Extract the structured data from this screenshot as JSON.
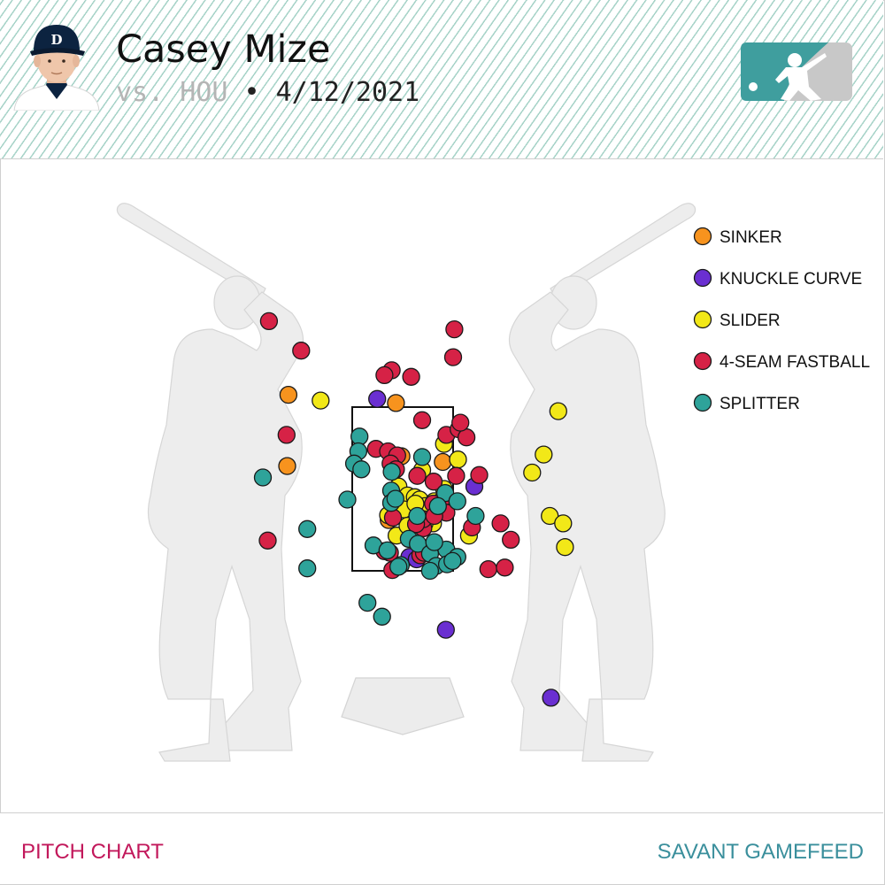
{
  "header": {
    "pitcher_name": "Casey Mize",
    "opponent": "vs. HOU",
    "separator": "•",
    "date": "4/12/2021"
  },
  "footer": {
    "left_label": "PITCH CHART",
    "right_label": "SAVANT GAMEFEED"
  },
  "icons": [
    "player-headshot-icon",
    "mlb-logo-icon",
    "batter-silhouette-icon",
    "home-plate-icon"
  ],
  "colors": {
    "SINKER": "#f7931e",
    "KNUCKLE CURVE": "#6a2fd1",
    "SLIDER": "#f2e818",
    "4-SEAM FASTBALL": "#d62246",
    "SPLITTER": "#2ea39a",
    "footer_left": "#c2185b",
    "footer_right": "#3a8f9c"
  },
  "chart_data": {
    "type": "scatter",
    "title": "",
    "xlabel": "",
    "ylabel": "",
    "legend_position": "right",
    "strike_zone": {
      "x": [
        -0.83,
        0.83
      ],
      "z": [
        1.5,
        3.5
      ]
    },
    "series": [
      {
        "name": "SINKER",
        "color": "#f7931e",
        "points": [
          [
            -1.88,
            3.65
          ],
          [
            -0.11,
            3.55
          ],
          [
            -1.9,
            2.78
          ],
          [
            -0.02,
            2.9
          ],
          [
            0.66,
            2.83
          ],
          [
            -0.23,
            2.12
          ]
        ]
      },
      {
        "name": "KNUCKLE CURVE",
        "color": "#6a2fd1",
        "points": [
          [
            -0.42,
            3.6
          ],
          [
            1.18,
            2.53
          ],
          [
            0.11,
            1.67
          ],
          [
            0.23,
            1.64
          ],
          [
            0.71,
            0.78
          ],
          [
            2.44,
            -0.05
          ]
        ]
      },
      {
        "name": "SLIDER",
        "color": "#f2e818",
        "points": [
          [
            -1.35,
            3.58
          ],
          [
            2.56,
            3.45
          ],
          [
            2.32,
            2.92
          ],
          [
            -0.07,
            2.53
          ],
          [
            0.08,
            2.42
          ],
          [
            0.2,
            2.4
          ],
          [
            0.28,
            2.37
          ],
          [
            0.37,
            2.29
          ],
          [
            0.02,
            2.25
          ],
          [
            0.43,
            2.25
          ],
          [
            0.49,
            2.14
          ],
          [
            -0.24,
            2.18
          ],
          [
            0.68,
            2.5
          ],
          [
            2.13,
            2.7
          ],
          [
            2.67,
            1.79
          ],
          [
            0.32,
            2.73
          ],
          [
            0.68,
            3.05
          ],
          [
            0.91,
            2.86
          ],
          [
            0.52,
            2.35
          ],
          [
            0.21,
            2.32
          ],
          [
            0.5,
            2.08
          ],
          [
            2.42,
            2.17
          ],
          [
            2.64,
            2.08
          ],
          [
            -0.1,
            1.93
          ],
          [
            1.09,
            1.93
          ],
          [
            0.36,
            2.08
          ],
          [
            0.08,
            2.05
          ]
        ]
      },
      {
        "name": "4-SEAM FASTBALL",
        "color": "#d62246",
        "points": [
          [
            -2.2,
            4.55
          ],
          [
            0.85,
            4.45
          ],
          [
            -1.67,
            4.19
          ],
          [
            0.83,
            4.11
          ],
          [
            -0.18,
            3.95
          ],
          [
            -0.3,
            3.89
          ],
          [
            0.14,
            3.87
          ],
          [
            -1.91,
            3.16
          ],
          [
            0.32,
            3.34
          ],
          [
            0.72,
            3.16
          ],
          [
            0.92,
            3.23
          ],
          [
            1.05,
            3.13
          ],
          [
            1.26,
            2.67
          ],
          [
            0.95,
            3.31
          ],
          [
            -0.44,
            2.99
          ],
          [
            -0.24,
            2.96
          ],
          [
            -0.09,
            2.91
          ],
          [
            -0.2,
            2.81
          ],
          [
            -0.11,
            2.74
          ],
          [
            0.88,
            2.66
          ],
          [
            0.24,
            2.66
          ],
          [
            0.51,
            2.59
          ],
          [
            -0.16,
            2.15
          ],
          [
            -2.22,
            1.87
          ],
          [
            1.78,
            1.88
          ],
          [
            0.34,
            2.02
          ],
          [
            0.63,
            2.35
          ],
          [
            0.5,
            2.32
          ],
          [
            0.72,
            2.21
          ],
          [
            0.34,
            2.13
          ],
          [
            1.14,
            2.03
          ],
          [
            1.61,
            2.08
          ],
          [
            0.29,
            1.69
          ],
          [
            0.35,
            1.72
          ],
          [
            -0.21,
            1.72
          ],
          [
            -0.3,
            1.74
          ],
          [
            1.41,
            1.52
          ],
          [
            1.68,
            1.54
          ],
          [
            0.22,
            2.07
          ],
          [
            0.52,
            2.17
          ],
          [
            -0.17,
            1.51
          ]
        ]
      },
      {
        "name": "SPLITTER",
        "color": "#2ea39a",
        "points": [
          [
            -0.71,
            3.14
          ],
          [
            -0.73,
            2.96
          ],
          [
            -0.8,
            2.81
          ],
          [
            -0.68,
            2.74
          ],
          [
            -2.3,
            2.64
          ],
          [
            0.32,
            2.89
          ],
          [
            -0.18,
            2.71
          ],
          [
            -0.19,
            2.48
          ],
          [
            0.7,
            2.45
          ],
          [
            -0.91,
            2.37
          ],
          [
            -0.19,
            2.33
          ],
          [
            -0.12,
            2.38
          ],
          [
            0.58,
            2.29
          ],
          [
            0.9,
            2.35
          ],
          [
            1.2,
            2.17
          ],
          [
            -1.57,
            2.01
          ],
          [
            0.1,
            1.89
          ],
          [
            0.24,
            2.17
          ],
          [
            -0.48,
            1.81
          ],
          [
            -0.25,
            1.75
          ],
          [
            0.25,
            1.83
          ],
          [
            0.72,
            1.76
          ],
          [
            0.9,
            1.67
          ],
          [
            0.45,
            1.71
          ],
          [
            -1.57,
            1.53
          ],
          [
            -0.03,
            1.57
          ],
          [
            0.55,
            1.56
          ],
          [
            0.73,
            1.58
          ],
          [
            -0.58,
            1.11
          ],
          [
            -0.34,
            0.94
          ],
          [
            -0.07,
            1.55
          ],
          [
            0.45,
            1.5
          ],
          [
            0.82,
            1.62
          ],
          [
            0.52,
            1.85
          ]
        ]
      }
    ]
  }
}
